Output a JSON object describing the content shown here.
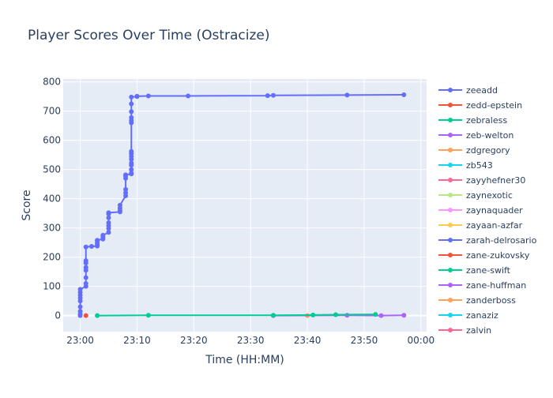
{
  "chart_data": {
    "type": "line",
    "title": "Player Scores Over Time (Ostracize)",
    "xlabel": "Time (HH:MM)",
    "ylabel": "Score",
    "x_unit": "time of day (HH:MM)",
    "xlim": [
      "22:57",
      "00:01"
    ],
    "ylim": [
      -55,
      810
    ],
    "x_ticks": [
      "23:00",
      "23:10",
      "23:20",
      "23:30",
      "23:40",
      "23:50",
      "00:00"
    ],
    "y_ticks": [
      0,
      100,
      200,
      300,
      400,
      500,
      600,
      700,
      800
    ],
    "grid": true,
    "legend_position": "right",
    "series": [
      {
        "name": "zeeadd",
        "color": "#636efa",
        "points": [
          [
            "23:00",
            0
          ],
          [
            "23:00",
            5
          ],
          [
            "23:00",
            15
          ],
          [
            "23:00",
            30
          ],
          [
            "23:00",
            50
          ],
          [
            "23:00",
            60
          ],
          [
            "23:00",
            70
          ],
          [
            "23:00",
            80
          ],
          [
            "23:00",
            90
          ],
          [
            "23:01",
            100
          ],
          [
            "23:01",
            110
          ],
          [
            "23:01",
            130
          ],
          [
            "23:01",
            155
          ],
          [
            "23:01",
            165
          ],
          [
            "23:01",
            180
          ],
          [
            "23:01",
            188
          ],
          [
            "23:01",
            235
          ],
          [
            "23:02",
            237
          ],
          [
            "23:03",
            238
          ],
          [
            "23:03",
            242
          ],
          [
            "23:03",
            248
          ],
          [
            "23:03",
            255
          ],
          [
            "23:03",
            258
          ],
          [
            "23:04",
            262
          ],
          [
            "23:04",
            268
          ],
          [
            "23:04",
            275
          ],
          [
            "23:05",
            285
          ],
          [
            "23:05",
            298
          ],
          [
            "23:05",
            308
          ],
          [
            "23:05",
            318
          ],
          [
            "23:05",
            335
          ],
          [
            "23:05",
            348
          ],
          [
            "23:05",
            352
          ],
          [
            "23:07",
            355
          ],
          [
            "23:07",
            360
          ],
          [
            "23:07",
            368
          ],
          [
            "23:07",
            378
          ],
          [
            "23:08",
            410
          ],
          [
            "23:08",
            420
          ],
          [
            "23:08",
            432
          ],
          [
            "23:08",
            470
          ],
          [
            "23:08",
            478
          ],
          [
            "23:08",
            482
          ],
          [
            "23:09",
            485
          ],
          [
            "23:09",
            488
          ],
          [
            "23:09",
            500
          ],
          [
            "23:09",
            515
          ],
          [
            "23:09",
            522
          ],
          [
            "23:09",
            535
          ],
          [
            "23:09",
            545
          ],
          [
            "23:09",
            555
          ],
          [
            "23:09",
            562
          ],
          [
            "23:09",
            660
          ],
          [
            "23:09",
            668
          ],
          [
            "23:09",
            678
          ],
          [
            "23:09",
            698
          ],
          [
            "23:09",
            725
          ],
          [
            "23:09",
            748
          ],
          [
            "23:10",
            750
          ],
          [
            "23:10",
            751
          ],
          [
            "23:12",
            752
          ],
          [
            "23:19",
            752
          ],
          [
            "23:33",
            753
          ],
          [
            "23:34",
            754
          ],
          [
            "23:47",
            755
          ],
          [
            "23:57",
            756
          ]
        ]
      },
      {
        "name": "zedd-epstein",
        "color": "#ef553b",
        "points": [
          [
            "23:01",
            0
          ]
        ]
      },
      {
        "name": "zebraless",
        "color": "#00cc96",
        "points": [
          [
            "23:03",
            0
          ],
          [
            "23:12",
            1
          ],
          [
            "23:34",
            1
          ],
          [
            "23:41",
            2
          ],
          [
            "23:45",
            3
          ],
          [
            "23:52",
            4
          ]
        ]
      },
      {
        "name": "zeb-welton",
        "color": "#ab63fa",
        "points": [
          [
            "23:34",
            0
          ],
          [
            "23:47",
            1
          ],
          [
            "23:53",
            0
          ],
          [
            "23:57",
            1
          ]
        ]
      },
      {
        "name": "zdgregory",
        "color": "#ffa15a",
        "points": [
          [
            "23:40",
            0
          ]
        ]
      },
      {
        "name": "zb543",
        "color": "#19d3f3",
        "points": []
      },
      {
        "name": "zayyhefner30",
        "color": "#ff6692",
        "points": []
      },
      {
        "name": "zaynexotic",
        "color": "#b6e880",
        "points": [
          [
            "23:00",
            0
          ]
        ]
      },
      {
        "name": "zaynaquader",
        "color": "#ff97ff",
        "points": []
      },
      {
        "name": "zayaan-azfar",
        "color": "#fecb52",
        "points": []
      },
      {
        "name": "zarah-delrosario",
        "color": "#636efa",
        "points": []
      },
      {
        "name": "zane-zukovsky",
        "color": "#ef553b",
        "points": []
      },
      {
        "name": "zane-swift",
        "color": "#00cc96",
        "points": []
      },
      {
        "name": "zane-huffman",
        "color": "#ab63fa",
        "points": []
      },
      {
        "name": "zanderboss",
        "color": "#ffa15a",
        "points": []
      },
      {
        "name": "zanaziz",
        "color": "#19d3f3",
        "points": []
      },
      {
        "name": "zalvin",
        "color": "#ff6692",
        "points": []
      }
    ]
  }
}
